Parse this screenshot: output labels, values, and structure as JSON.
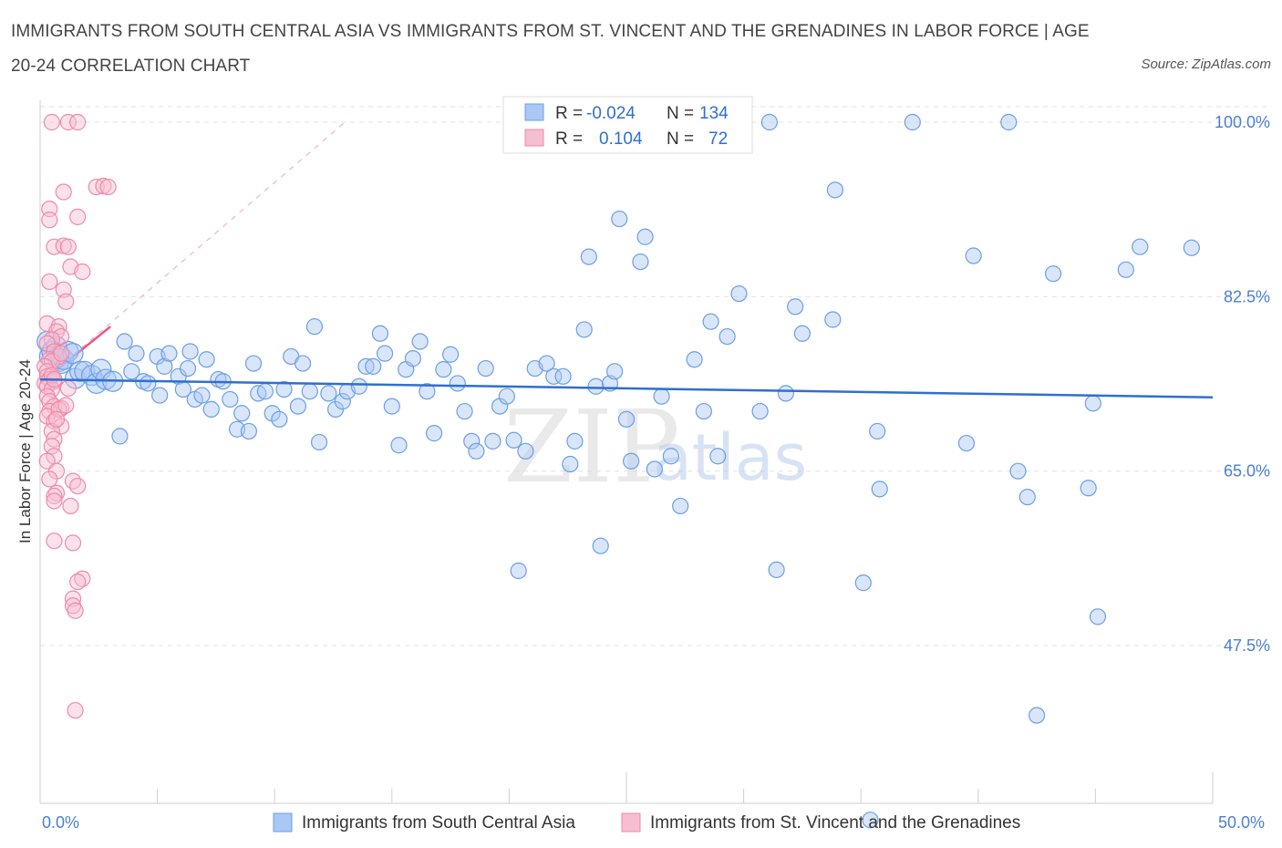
{
  "title": "IMMIGRANTS FROM SOUTH CENTRAL ASIA VS IMMIGRANTS FROM ST. VINCENT AND THE GRENADINES IN LABOR FORCE | AGE 20-24 CORRELATION CHART",
  "source": "Source: ZipAtlas.com",
  "watermark": {
    "zip": "ZIP",
    "atlas": "atlas"
  },
  "chart_data": {
    "type": "scatter",
    "xlabel": "",
    "ylabel": "In Labor Force | Age 20-24",
    "xlim": [
      0,
      50
    ],
    "ylim": [
      31,
      101.5
    ],
    "x_tick_labels": [
      "0.0%",
      "50.0%"
    ],
    "y_ticks": [
      47.5,
      65.0,
      82.5,
      100.0
    ],
    "y_tick_labels": [
      "47.5%",
      "65.0%",
      "82.5%",
      "100.0%"
    ],
    "grid": true,
    "colors": {
      "blue": "#6b9ee8",
      "blue_fill": "#aac8f3",
      "pink": "#ee8aab",
      "pink_fill": "#f6bfd1",
      "blue_line": "#2f6fd0",
      "pink_line": "#e8588a"
    },
    "legend": {
      "rows": [
        {
          "r_label": "R = ",
          "r_value": "-0.024",
          "n_label": "N = ",
          "n_value": "134"
        },
        {
          "r_label": "R = ",
          "r_value": "0.104",
          "n_label": "N = ",
          "n_value": "72"
        }
      ]
    },
    "series": [
      {
        "name": "Immigrants from South Central Asia",
        "color": "blue",
        "trend": {
          "x": [
            0,
            50
          ],
          "y": [
            74.2,
            72.4
          ]
        },
        "points": [
          [
            0.3,
            78
          ],
          [
            0.4,
            76.5
          ],
          [
            0.5,
            77
          ],
          [
            0.7,
            77.5
          ],
          [
            0.8,
            76
          ],
          [
            0.9,
            75.8
          ],
          [
            1,
            76.2
          ],
          [
            1.2,
            77
          ],
          [
            1.4,
            76.8
          ],
          [
            1.5,
            74.3
          ],
          [
            1.7,
            75
          ],
          [
            1.9,
            75
          ],
          [
            2.2,
            74.6
          ],
          [
            2.4,
            73.8
          ],
          [
            2.6,
            75.2
          ],
          [
            2.8,
            74.2
          ],
          [
            3.1,
            74
          ],
          [
            3.4,
            68.5
          ],
          [
            3.6,
            78
          ],
          [
            3.9,
            75
          ],
          [
            4.1,
            76.8
          ],
          [
            4.4,
            74
          ],
          [
            4.6,
            73.8
          ],
          [
            5,
            76.5
          ],
          [
            5.1,
            72.6
          ],
          [
            5.3,
            75.5
          ],
          [
            5.5,
            76.8
          ],
          [
            5.9,
            74.5
          ],
          [
            6.1,
            73.2
          ],
          [
            6.3,
            75.3
          ],
          [
            6.4,
            77
          ],
          [
            6.6,
            72.2
          ],
          [
            6.9,
            72.6
          ],
          [
            7.1,
            76.2
          ],
          [
            7.3,
            71.2
          ],
          [
            7.6,
            74.2
          ],
          [
            7.8,
            74
          ],
          [
            8.1,
            72.2
          ],
          [
            8.4,
            69.2
          ],
          [
            8.6,
            70.8
          ],
          [
            8.9,
            69
          ],
          [
            9.1,
            75.8
          ],
          [
            9.3,
            72.8
          ],
          [
            9.6,
            73
          ],
          [
            9.9,
            70.8
          ],
          [
            10.2,
            70.2
          ],
          [
            10.4,
            73.2
          ],
          [
            10.7,
            76.5
          ],
          [
            11,
            71.5
          ],
          [
            11.2,
            75.8
          ],
          [
            11.5,
            73
          ],
          [
            11.7,
            79.5
          ],
          [
            11.9,
            67.9
          ],
          [
            12.3,
            72.8
          ],
          [
            12.6,
            71.2
          ],
          [
            12.9,
            72
          ],
          [
            13.1,
            73
          ],
          [
            13.6,
            73.5
          ],
          [
            13.9,
            75.5
          ],
          [
            14.2,
            75.5
          ],
          [
            14.5,
            78.8
          ],
          [
            14.7,
            76.8
          ],
          [
            15,
            71.5
          ],
          [
            15.3,
            67.6
          ],
          [
            15.6,
            75.2
          ],
          [
            15.9,
            76.3
          ],
          [
            16.2,
            78
          ],
          [
            16.5,
            73
          ],
          [
            16.8,
            68.8
          ],
          [
            17.2,
            75.2
          ],
          [
            17.5,
            76.7
          ],
          [
            17.8,
            73.8
          ],
          [
            18.1,
            71
          ],
          [
            18.4,
            68
          ],
          [
            18.6,
            67
          ],
          [
            19,
            75.3
          ],
          [
            19.3,
            68
          ],
          [
            19.6,
            71.5
          ],
          [
            19.9,
            72.5
          ],
          [
            20.2,
            68.1
          ],
          [
            20.4,
            55
          ],
          [
            20.7,
            67
          ],
          [
            21.1,
            75.3
          ],
          [
            21.6,
            75.8
          ],
          [
            21.9,
            74.5
          ],
          [
            22.3,
            74.5
          ],
          [
            22.6,
            65.7
          ],
          [
            22.8,
            68
          ],
          [
            23.2,
            79.2
          ],
          [
            23.4,
            86.5
          ],
          [
            23.7,
            73.5
          ],
          [
            23.9,
            57.5
          ],
          [
            24.3,
            73.8
          ],
          [
            24.5,
            75
          ],
          [
            24.7,
            90.3
          ],
          [
            25,
            70.2
          ],
          [
            25.2,
            66
          ],
          [
            25.6,
            86
          ],
          [
            25.8,
            88.5
          ],
          [
            26.2,
            65.2
          ],
          [
            26.5,
            72.5
          ],
          [
            26.9,
            66.5
          ],
          [
            27.3,
            61.5
          ],
          [
            27.9,
            76.2
          ],
          [
            28.3,
            71
          ],
          [
            28.6,
            80
          ],
          [
            28.9,
            66.5
          ],
          [
            29.3,
            78.5
          ],
          [
            29.8,
            82.8
          ],
          [
            30.7,
            71
          ],
          [
            31.1,
            100
          ],
          [
            31.4,
            55.1
          ],
          [
            31.8,
            72.8
          ],
          [
            32.2,
            81.5
          ],
          [
            32.5,
            78.8
          ],
          [
            33.8,
            80.2
          ],
          [
            33.9,
            93.2
          ],
          [
            35.7,
            69
          ],
          [
            35.4,
            30
          ],
          [
            35.1,
            53.8
          ],
          [
            35.8,
            63.2
          ],
          [
            37.2,
            100
          ],
          [
            39.5,
            67.8
          ],
          [
            39.8,
            86.6
          ],
          [
            41.3,
            100
          ],
          [
            41.7,
            65
          ],
          [
            42.1,
            62.4
          ],
          [
            42.5,
            40.5
          ],
          [
            43.2,
            84.8
          ],
          [
            44.7,
            63.3
          ],
          [
            44.9,
            71.8
          ],
          [
            45.1,
            50.4
          ],
          [
            46.3,
            85.2
          ],
          [
            46.9,
            87.5
          ],
          [
            49.1,
            87.4
          ]
        ]
      },
      {
        "name": "Immigrants from St. Vincent and the Grenadines",
        "color": "pink",
        "trend": {
          "x": [
            0,
            3
          ],
          "y": [
            73.8,
            79.5
          ]
        },
        "trend_extended": {
          "x": [
            0,
            13
          ],
          "y": [
            73.8,
            100
          ]
        },
        "points": [
          [
            0.5,
            100
          ],
          [
            1.2,
            100
          ],
          [
            1.6,
            100
          ],
          [
            2.4,
            93.5
          ],
          [
            2.7,
            93.6
          ],
          [
            2.9,
            93.5
          ],
          [
            1,
            93
          ],
          [
            0.4,
            91.3
          ],
          [
            0.4,
            90.2
          ],
          [
            1.6,
            90.5
          ],
          [
            0.6,
            87.5
          ],
          [
            1,
            87.6
          ],
          [
            1.2,
            87.5
          ],
          [
            1.3,
            85.5
          ],
          [
            1.8,
            85
          ],
          [
            0.4,
            84
          ],
          [
            1,
            83.2
          ],
          [
            1.1,
            82
          ],
          [
            0.3,
            79.8
          ],
          [
            0.8,
            79.5
          ],
          [
            0.7,
            79
          ],
          [
            0.9,
            78.5
          ],
          [
            0.5,
            78.2
          ],
          [
            0.3,
            77.8
          ],
          [
            0.6,
            77
          ],
          [
            0.8,
            76.5
          ],
          [
            0.4,
            76.2
          ],
          [
            0.5,
            76
          ],
          [
            0.2,
            75.5
          ],
          [
            0.3,
            75
          ],
          [
            0.3,
            74.5
          ],
          [
            0.4,
            74.2
          ],
          [
            0.6,
            74
          ],
          [
            0.2,
            73.8
          ],
          [
            0.3,
            73.5
          ],
          [
            0.5,
            73.2
          ],
          [
            0.3,
            72.5
          ],
          [
            0.4,
            72
          ],
          [
            0.6,
            71.5
          ],
          [
            0.9,
            71.3
          ],
          [
            0.4,
            71
          ],
          [
            0.3,
            70.5
          ],
          [
            0.6,
            70
          ],
          [
            0.9,
            69.5
          ],
          [
            0.5,
            69
          ],
          [
            0.6,
            68.2
          ],
          [
            0.5,
            67.5
          ],
          [
            0.6,
            66.5
          ],
          [
            0.3,
            66
          ],
          [
            0.7,
            65
          ],
          [
            0.4,
            64.2
          ],
          [
            1.4,
            64
          ],
          [
            1.6,
            63.5
          ],
          [
            0.7,
            62.8
          ],
          [
            0.6,
            62.5
          ],
          [
            0.6,
            62
          ],
          [
            1.3,
            61.5
          ],
          [
            0.6,
            58
          ],
          [
            1.4,
            57.8
          ],
          [
            1.8,
            54.2
          ],
          [
            1.6,
            53.9
          ],
          [
            1.4,
            52.2
          ],
          [
            1.4,
            51.5
          ],
          [
            1.5,
            51
          ],
          [
            1.5,
            41
          ],
          [
            0.8,
            71.2
          ],
          [
            1.1,
            71.6
          ],
          [
            0.5,
            74.6
          ],
          [
            0.6,
            74.2
          ],
          [
            0.9,
            76.8
          ],
          [
            1.2,
            73.3
          ],
          [
            0.7,
            70.2
          ]
        ]
      }
    ]
  },
  "bottom_legend": [
    {
      "label": "Immigrants from South Central Asia",
      "color": "blue"
    },
    {
      "label": "Immigrants from St. Vincent and the Grenadines",
      "color": "pink"
    }
  ]
}
